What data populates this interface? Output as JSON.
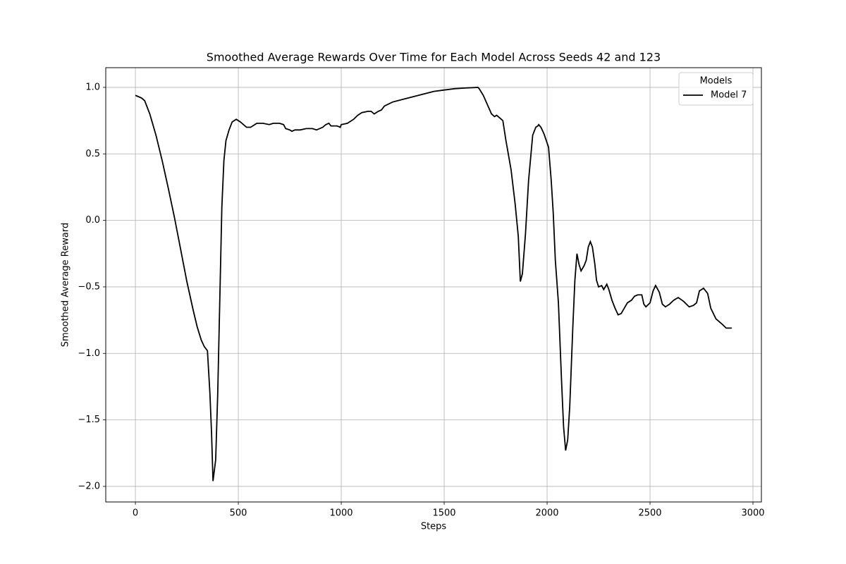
{
  "chart_data": {
    "type": "line",
    "title": "Smoothed Average Rewards Over Time for Each Model Across Seeds 42 and 123",
    "x_label": "Steps",
    "y_label": "Smoothed Average Reward",
    "legend_title": "Models",
    "legend_position": "upper right",
    "grid": true,
    "x": [
      0,
      30,
      45,
      70,
      100,
      130,
      160,
      190,
      220,
      250,
      280,
      300,
      320,
      335,
      350,
      362,
      370,
      377,
      390,
      400,
      410,
      420,
      430,
      440,
      455,
      470,
      490,
      510,
      540,
      560,
      590,
      620,
      650,
      670,
      700,
      720,
      730,
      750,
      760,
      775,
      800,
      830,
      860,
      880,
      910,
      925,
      940,
      950,
      980,
      995,
      1000,
      1030,
      1060,
      1080,
      1100,
      1130,
      1145,
      1160,
      1180,
      1195,
      1210,
      1250,
      1300,
      1350,
      1400,
      1450,
      1500,
      1550,
      1600,
      1664,
      1670,
      1690,
      1710,
      1730,
      1745,
      1755,
      1770,
      1785,
      1800,
      1825,
      1845,
      1860,
      1870,
      1880,
      1895,
      1910,
      1930,
      1945,
      1955,
      1959,
      1970,
      1985,
      2007,
      2020,
      2030,
      2040,
      2055,
      2070,
      2080,
      2090,
      2100,
      2110,
      2125,
      2135,
      2145,
      2155,
      2165,
      2180,
      2190,
      2200,
      2210,
      2220,
      2232,
      2240,
      2250,
      2265,
      2275,
      2290,
      2300,
      2315,
      2330,
      2345,
      2360,
      2375,
      2390,
      2410,
      2425,
      2440,
      2460,
      2470,
      2480,
      2500,
      2515,
      2527,
      2545,
      2560,
      2575,
      2595,
      2615,
      2637,
      2664,
      2690,
      2710,
      2726,
      2740,
      2760,
      2780,
      2795,
      2820,
      2850,
      2870,
      2897
    ],
    "series": [
      {
        "name": "Model 7",
        "color": "#000000",
        "values": [
          0.94,
          0.92,
          0.9,
          0.8,
          0.64,
          0.45,
          0.24,
          0.02,
          -0.22,
          -0.46,
          -0.67,
          -0.8,
          -0.9,
          -0.95,
          -0.98,
          -1.3,
          -1.6,
          -1.96,
          -1.8,
          -1.3,
          -0.6,
          0.1,
          0.45,
          0.6,
          0.68,
          0.74,
          0.76,
          0.74,
          0.7,
          0.7,
          0.73,
          0.73,
          0.72,
          0.73,
          0.73,
          0.72,
          0.69,
          0.68,
          0.67,
          0.68,
          0.68,
          0.69,
          0.69,
          0.68,
          0.7,
          0.72,
          0.73,
          0.71,
          0.71,
          0.7,
          0.72,
          0.73,
          0.76,
          0.79,
          0.81,
          0.82,
          0.82,
          0.8,
          0.82,
          0.83,
          0.86,
          0.89,
          0.91,
          0.93,
          0.95,
          0.97,
          0.98,
          0.99,
          0.995,
          1.0,
          0.99,
          0.94,
          0.87,
          0.8,
          0.78,
          0.79,
          0.77,
          0.75,
          0.6,
          0.38,
          0.12,
          -0.12,
          -0.46,
          -0.4,
          -0.1,
          0.3,
          0.64,
          0.7,
          0.71,
          0.72,
          0.7,
          0.65,
          0.55,
          0.3,
          0.05,
          -0.3,
          -0.62,
          -1.2,
          -1.55,
          -1.73,
          -1.65,
          -1.4,
          -0.8,
          -0.45,
          -0.25,
          -0.33,
          -0.38,
          -0.34,
          -0.3,
          -0.2,
          -0.16,
          -0.2,
          -0.33,
          -0.45,
          -0.5,
          -0.49,
          -0.52,
          -0.48,
          -0.52,
          -0.6,
          -0.66,
          -0.71,
          -0.7,
          -0.66,
          -0.62,
          -0.6,
          -0.57,
          -0.56,
          -0.56,
          -0.63,
          -0.65,
          -0.62,
          -0.53,
          -0.49,
          -0.54,
          -0.63,
          -0.65,
          -0.63,
          -0.6,
          -0.58,
          -0.61,
          -0.65,
          -0.64,
          -0.62,
          -0.53,
          -0.51,
          -0.55,
          -0.66,
          -0.74,
          -0.78,
          -0.81,
          -0.81
        ]
      }
    ],
    "xlim": [
      -144,
      3041
    ],
    "ylim": [
      -2.117,
      1.148
    ],
    "xticks": [
      0,
      500,
      1000,
      1500,
      2000,
      2500,
      3000
    ],
    "yticks": [
      {
        "value": -2.0,
        "label": "−2.0"
      },
      {
        "value": -1.5,
        "label": "−1.5"
      },
      {
        "value": -1.0,
        "label": "−1.0"
      },
      {
        "value": -0.5,
        "label": "−0.5"
      },
      {
        "value": 0.0,
        "label": "0.0"
      },
      0.5,
      {
        "value": 1.0,
        "label": "1.0"
      }
    ]
  }
}
